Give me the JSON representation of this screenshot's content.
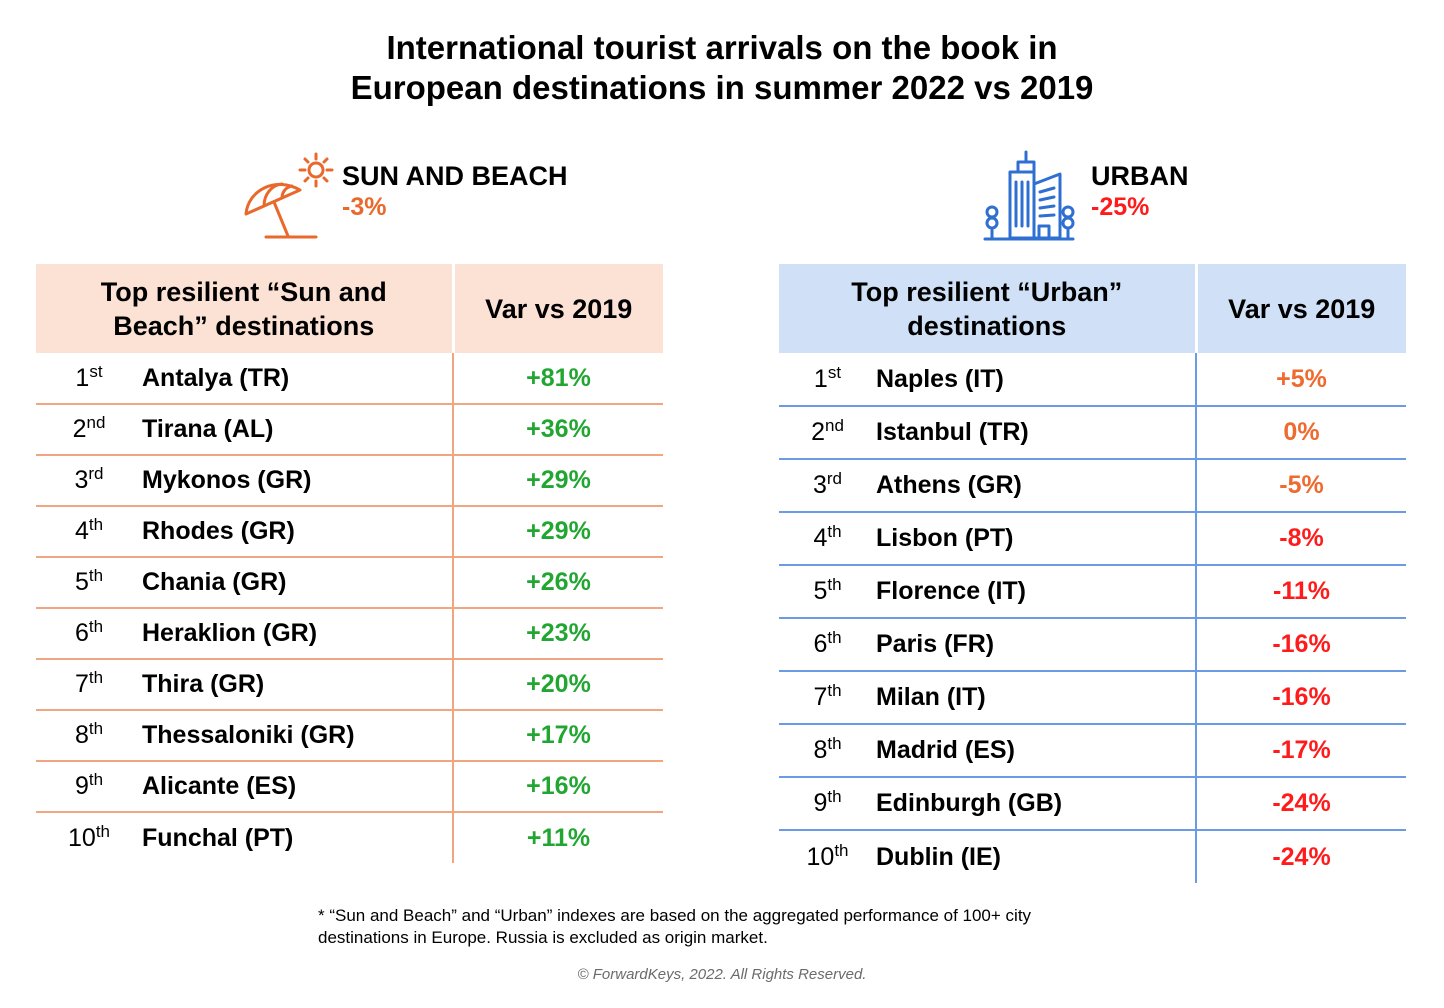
{
  "title": {
    "line1": "International tourist arrivals on the book in",
    "line2": "European destinations in summer 2022 vs 2019"
  },
  "colors": {
    "sun_accent": "#e8692b",
    "urban_accent": "#2e6fd1",
    "positive": "#22a632",
    "moderate": "#ef6a2e",
    "negative": "#ff1b1b",
    "sun_header_bg": "#fbe2d5",
    "urban_header_bg": "#cfe0f7"
  },
  "sun_beach": {
    "icon": "beach-umbrella-sun-icon",
    "segment_name": "SUN AND BEACH",
    "segment_var": "-3%",
    "header_dest_line1": "Top resilient “Sun and",
    "header_dest_line2": "Beach” destinations",
    "header_var": "Var vs 2019",
    "rows": [
      {
        "rank": "1",
        "suffix": "st",
        "name": "Antalya (TR)",
        "var": "+81%",
        "tone": "pos"
      },
      {
        "rank": "2",
        "suffix": "nd",
        "name": "Tirana (AL)",
        "var": "+36%",
        "tone": "pos"
      },
      {
        "rank": "3",
        "suffix": "rd",
        "name": "Mykonos (GR)",
        "var": "+29%",
        "tone": "pos"
      },
      {
        "rank": "4",
        "suffix": "th",
        "name": "Rhodes (GR)",
        "var": "+29%",
        "tone": "pos"
      },
      {
        "rank": "5",
        "suffix": "th",
        "name": "Chania (GR)",
        "var": "+26%",
        "tone": "pos"
      },
      {
        "rank": "6",
        "suffix": "th",
        "name": "Heraklion (GR)",
        "var": "+23%",
        "tone": "pos"
      },
      {
        "rank": "7",
        "suffix": "th",
        "name": "Thira (GR)",
        "var": "+20%",
        "tone": "pos"
      },
      {
        "rank": "8",
        "suffix": "th",
        "name": "Thessaloniki (GR)",
        "var": "+17%",
        "tone": "pos"
      },
      {
        "rank": "9",
        "suffix": "th",
        "name": "Alicante (ES)",
        "var": "+16%",
        "tone": "pos"
      },
      {
        "rank": "10",
        "suffix": "th",
        "name": "Funchal (PT)",
        "var": "+11%",
        "tone": "pos"
      }
    ]
  },
  "urban": {
    "icon": "city-buildings-icon",
    "segment_name": "URBAN",
    "segment_var": "-25%",
    "header_dest_line1": "Top resilient “Urban”",
    "header_dest_line2": "destinations",
    "header_var": "Var vs 2019",
    "rows": [
      {
        "rank": "1",
        "suffix": "st",
        "name": "Naples (IT)",
        "var": "+5%",
        "tone": "mid"
      },
      {
        "rank": "2",
        "suffix": "nd",
        "name": "Istanbul (TR)",
        "var": "0%",
        "tone": "mid"
      },
      {
        "rank": "3",
        "suffix": "rd",
        "name": "Athens (GR)",
        "var": "-5%",
        "tone": "mid"
      },
      {
        "rank": "4",
        "suffix": "th",
        "name": "Lisbon (PT)",
        "var": "-8%",
        "tone": "neg"
      },
      {
        "rank": "5",
        "suffix": "th",
        "name": "Florence (IT)",
        "var": "-11%",
        "tone": "neg"
      },
      {
        "rank": "6",
        "suffix": "th",
        "name": "Paris (FR)",
        "var": "-16%",
        "tone": "neg"
      },
      {
        "rank": "7",
        "suffix": "th",
        "name": "Milan (IT)",
        "var": "-16%",
        "tone": "neg"
      },
      {
        "rank": "8",
        "suffix": "th",
        "name": "Madrid (ES)",
        "var": "-17%",
        "tone": "neg"
      },
      {
        "rank": "9",
        "suffix": "th",
        "name": "Edinburgh (GB)",
        "var": "-24%",
        "tone": "neg"
      },
      {
        "rank": "10",
        "suffix": "th",
        "name": "Dublin (IE)",
        "var": "-24%",
        "tone": "neg"
      }
    ]
  },
  "footnote": {
    "line1": "* “Sun and Beach” and “Urban” indexes are based on the aggregated performance of 100+ city",
    "line2": "destinations in Europe. Russia is excluded as origin market."
  },
  "copyright": "© ForwardKeys, 2022. All Rights Reserved."
}
